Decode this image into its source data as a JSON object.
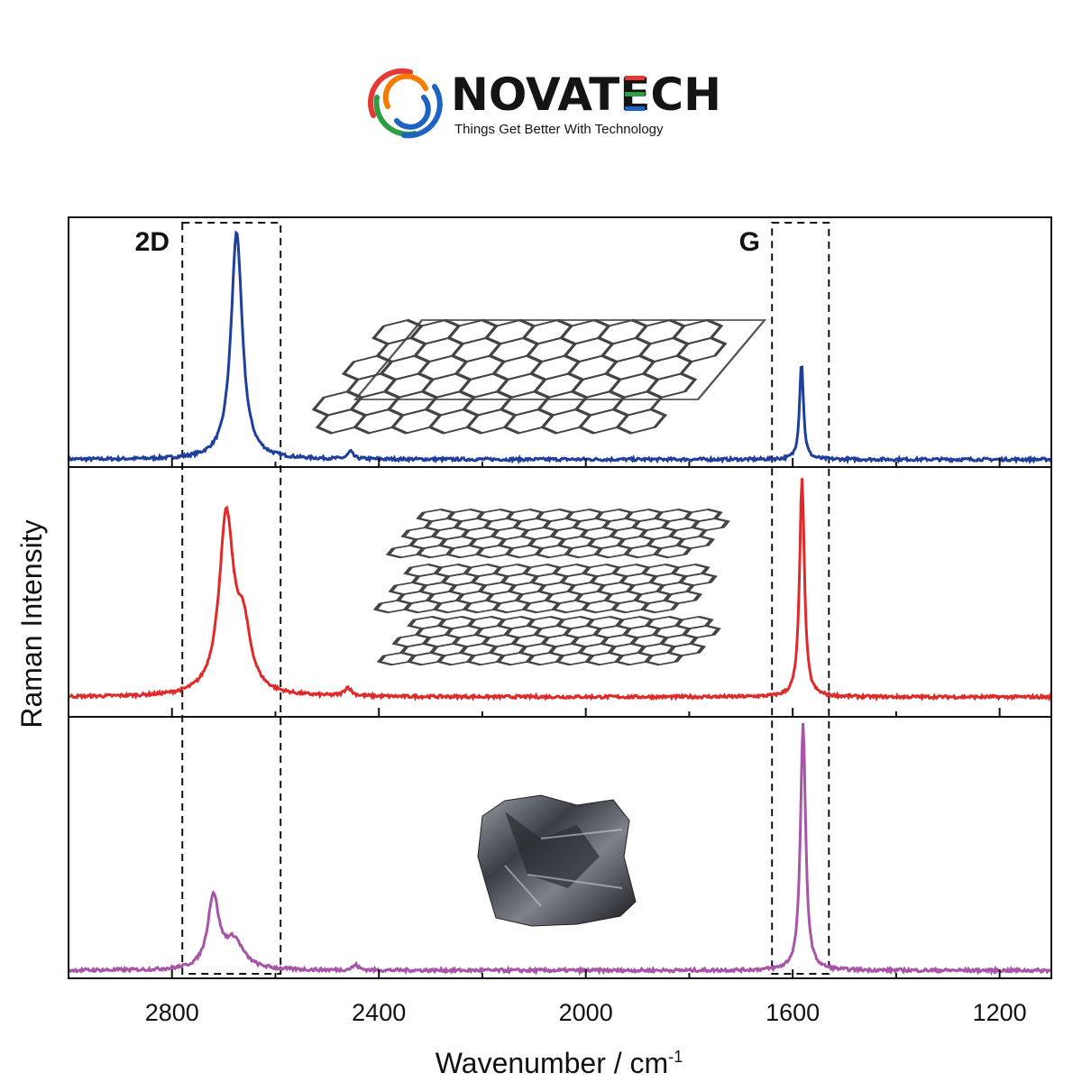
{
  "brand": {
    "name": "NOVATECH",
    "tagline": "Things Get Better With Technology",
    "colors": {
      "red": "#e53935",
      "orange": "#f57c00",
      "green": "#2e9d44",
      "blue": "#1e63c4",
      "text": "#141414"
    }
  },
  "chart_data": {
    "type": "line",
    "title": "",
    "xlabel": "Wavenumber / cm",
    "xlabel_superscript": "-1",
    "ylabel": "Raman Intensity",
    "xlim": [
      3000,
      1100
    ],
    "x_reversed": true,
    "xticks": [
      2800,
      2400,
      2000,
      1600,
      1200
    ],
    "grid": false,
    "regions": [
      {
        "label": "2D",
        "x_range": [
          2780,
          2590
        ]
      },
      {
        "label": "G",
        "x_range": [
          1640,
          1530
        ]
      }
    ],
    "series": [
      {
        "name": "monolayer graphene",
        "color": "#1f3f9c",
        "illustration": "single-layer-graphene",
        "baseline": 0.02,
        "peaks": [
          {
            "center": 2675,
            "height": 0.93,
            "width": 13
          },
          {
            "center": 2455,
            "height": 0.03,
            "width": 6
          },
          {
            "center": 1583,
            "height": 0.4,
            "width": 4.5
          }
        ]
      },
      {
        "name": "few-layer graphene",
        "color": "#e02a2a",
        "illustration": "stacked-graphene-layers",
        "baseline": 0.07,
        "peaks": [
          {
            "center": 2695,
            "height": 0.72,
            "width": 17
          },
          {
            "center": 2662,
            "height": 0.24,
            "width": 17
          },
          {
            "center": 2460,
            "height": 0.035,
            "width": 8
          },
          {
            "center": 1582,
            "height": 0.9,
            "width": 5.5
          }
        ]
      },
      {
        "name": "graphite",
        "color": "#a855a8",
        "illustration": "graphite-chunk",
        "baseline": 0.02,
        "peaks": [
          {
            "center": 2720,
            "height": 0.28,
            "width": 13
          },
          {
            "center": 2680,
            "height": 0.11,
            "width": 22
          },
          {
            "center": 2445,
            "height": 0.02,
            "width": 7
          },
          {
            "center": 1580,
            "height": 0.96,
            "width": 6
          }
        ]
      }
    ]
  }
}
